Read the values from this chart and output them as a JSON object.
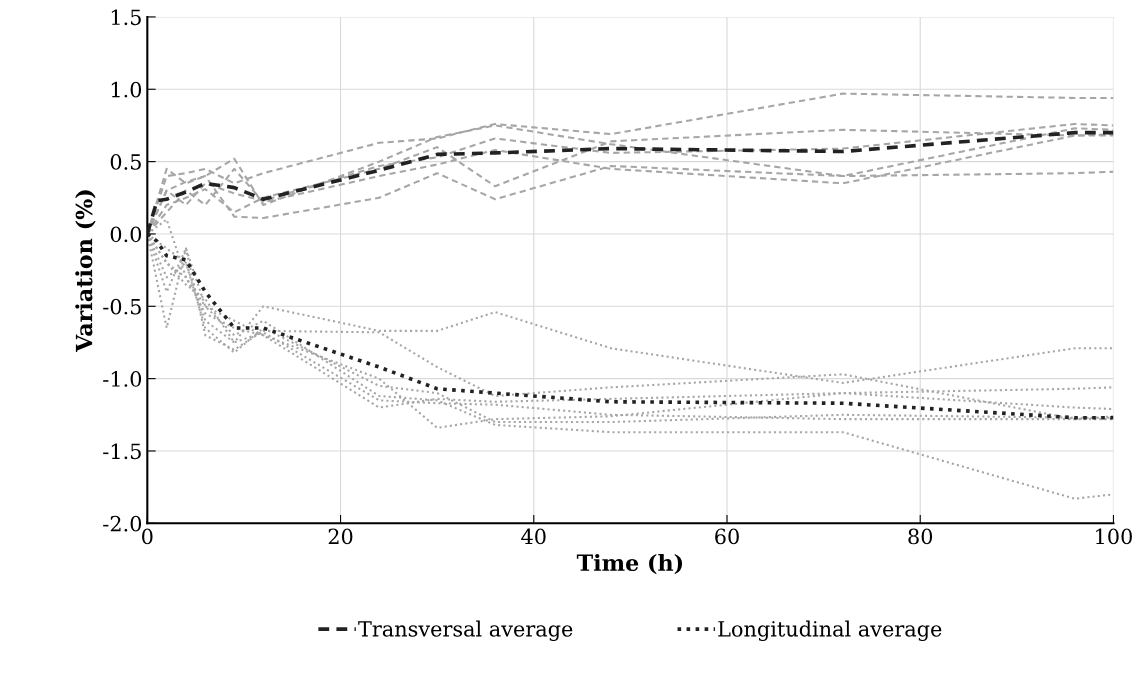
{
  "chart_data": {
    "type": "line",
    "xlabel": "Time (h)",
    "ylabel": "Variation (%)",
    "xlim": [
      0,
      100
    ],
    "xticks": [
      0,
      20,
      40,
      60,
      80,
      100
    ],
    "ylim": [
      -2.0,
      1.5
    ],
    "yticks": [
      {
        "value": -2.0,
        "label": "-2.0"
      },
      {
        "value": -1.5,
        "label": "-1.5"
      },
      {
        "value": -1.0,
        "label": "-1.0"
      },
      {
        "value": -0.5,
        "label": "-0.5"
      },
      {
        "value": 0.0,
        "label": "0.0"
      },
      {
        "value": 0.5,
        "label": "0.5"
      },
      {
        "value": 1.0,
        "label": "1.0"
      },
      {
        "value": 1.5,
        "label": "1.5"
      }
    ],
    "grid": true,
    "legend": "bottom",
    "series": [
      {
        "color": "#a6a6a6",
        "line_style": "dashed",
        "x": [
          0,
          2,
          4,
          6,
          9,
          12,
          24,
          30,
          36,
          48,
          72,
          96,
          100
        ],
        "values": [
          0,
          0.4,
          0.42,
          0.45,
          0.35,
          0.42,
          0.63,
          0.66,
          0.76,
          0.69,
          0.97,
          0.94,
          0.94
        ]
      },
      {
        "color": "#a6a6a6",
        "line_style": "dashed",
        "x": [
          0,
          2,
          4,
          6,
          9,
          12,
          24,
          30,
          36,
          48,
          72,
          96,
          100
        ],
        "values": [
          0,
          0.45,
          0.35,
          0.4,
          0.52,
          0.2,
          0.5,
          0.67,
          0.75,
          0.62,
          0.4,
          0.73,
          0.72
        ]
      },
      {
        "color": "#a6a6a6",
        "line_style": "dashed",
        "x": [
          0,
          2,
          4,
          6,
          9,
          12,
          24,
          30,
          36,
          48,
          72,
          96,
          100
        ],
        "values": [
          0,
          0.3,
          0.36,
          0.4,
          0.12,
          0.11,
          0.25,
          0.42,
          0.24,
          0.47,
          0.4,
          0.42,
          0.43
        ]
      },
      {
        "color": "#a6a6a6",
        "line_style": "dashed",
        "x": [
          0,
          2,
          4,
          6,
          9,
          12,
          24,
          30,
          36,
          48,
          72,
          96,
          100
        ],
        "values": [
          0,
          0.2,
          0.25,
          0.31,
          0.15,
          0.25,
          0.45,
          0.6,
          0.33,
          0.64,
          0.72,
          0.68,
          0.68
        ]
      },
      {
        "color": "#a6a6a6",
        "line_style": "dashed",
        "x": [
          0,
          2,
          4,
          6,
          9,
          12,
          24,
          30,
          36,
          48,
          72,
          96,
          100
        ],
        "values": [
          0,
          0.15,
          0.3,
          0.2,
          0.45,
          0.22,
          0.4,
          0.48,
          0.58,
          0.45,
          0.35,
          0.68,
          0.69
        ]
      },
      {
        "color": "#a6a6a6",
        "line_style": "dashed",
        "x": [
          0,
          2,
          4,
          6,
          9,
          12,
          24,
          30,
          36,
          48,
          72,
          96,
          100
        ],
        "values": [
          0,
          0.3,
          0.2,
          0.35,
          0.28,
          0.23,
          0.47,
          0.53,
          0.66,
          0.56,
          0.59,
          0.76,
          0.75
        ]
      },
      {
        "color": "#a6a6a6",
        "line_style": "dotted",
        "x": [
          0,
          2,
          4,
          6,
          9,
          12,
          24,
          30,
          36,
          48,
          72,
          96,
          100
        ],
        "values": [
          0,
          -0.3,
          -0.2,
          -0.6,
          -0.75,
          -0.5,
          -0.67,
          -0.67,
          -0.54,
          -0.79,
          -1.03,
          -0.79,
          -0.79
        ]
      },
      {
        "color": "#a6a6a6",
        "line_style": "dotted",
        "x": [
          0,
          2,
          4,
          6,
          9,
          12,
          24,
          30,
          36,
          48,
          72,
          96,
          100
        ],
        "values": [
          0,
          -0.65,
          -0.1,
          -0.7,
          -0.8,
          -0.67,
          -0.68,
          -0.92,
          -1.12,
          -1.06,
          -0.97,
          -1.28,
          -1.26
        ]
      },
      {
        "color": "#a6a6a6",
        "line_style": "dotted",
        "x": [
          0,
          2,
          4,
          6,
          9,
          12,
          24,
          30,
          36,
          48,
          72,
          96,
          100
        ],
        "values": [
          0,
          -0.2,
          -0.3,
          -0.5,
          -0.6,
          -0.7,
          -1.2,
          -1.14,
          -1.16,
          -1.14,
          -1.1,
          -1.07,
          -1.06
        ]
      },
      {
        "color": "#a6a6a6",
        "line_style": "dotted",
        "x": [
          0,
          2,
          4,
          6,
          9,
          12,
          24,
          30,
          36,
          48,
          72,
          96,
          100
        ],
        "values": [
          0,
          0.1,
          -0.3,
          -0.55,
          -0.65,
          -0.7,
          -1.0,
          -1.34,
          -1.28,
          -1.26,
          -1.1,
          -1.2,
          -1.21
        ]
      },
      {
        "color": "#a6a6a6",
        "line_style": "dotted",
        "x": [
          0,
          2,
          4,
          6,
          9,
          12,
          24,
          30,
          36,
          48,
          72,
          96,
          100
        ],
        "values": [
          0,
          -0.4,
          -0.1,
          -0.5,
          -0.7,
          -0.6,
          -1.12,
          -1.15,
          -1.32,
          -1.37,
          -1.37,
          -1.83,
          -1.8
        ]
      },
      {
        "color": "#a6a6a6",
        "line_style": "dotted",
        "x": [
          0,
          2,
          4,
          6,
          9,
          12,
          24,
          30,
          36,
          48,
          72,
          96,
          100
        ],
        "values": [
          0,
          -0.1,
          -0.2,
          -0.65,
          -0.82,
          -0.65,
          -1.05,
          -1.1,
          -1.3,
          -1.3,
          -1.25,
          -1.27,
          -1.27
        ]
      },
      {
        "color": "#a6a6a6",
        "line_style": "dotted",
        "x": [
          0,
          2,
          4,
          6,
          9,
          12,
          24,
          30,
          36,
          48,
          72,
          96,
          100
        ],
        "values": [
          0,
          -0.2,
          -0.35,
          -0.45,
          -0.75,
          -0.68,
          -1.15,
          -1.17,
          -1.18,
          -1.25,
          -1.28,
          -1.28,
          -1.28
        ]
      },
      {
        "name": "Transversal average",
        "color": "#222222",
        "line_style": "dashed",
        "x": [
          0,
          1,
          2,
          4,
          6,
          9,
          12,
          24,
          30,
          36,
          48,
          72,
          96,
          100
        ],
        "values": [
          0,
          0.23,
          0.24,
          0.29,
          0.35,
          0.32,
          0.24,
          0.44,
          0.55,
          0.56,
          0.59,
          0.57,
          0.7,
          0.7
        ]
      },
      {
        "name": "Longitudinal average",
        "color": "#222222",
        "line_style": "dotted",
        "x": [
          0,
          1,
          2,
          4,
          6,
          9,
          12,
          24,
          30,
          36,
          48,
          72,
          96,
          100
        ],
        "values": [
          0,
          -0.05,
          -0.15,
          -0.18,
          -0.4,
          -0.65,
          -0.65,
          -0.92,
          -1.07,
          -1.1,
          -1.16,
          -1.17,
          -1.27,
          -1.27
        ]
      }
    ]
  }
}
